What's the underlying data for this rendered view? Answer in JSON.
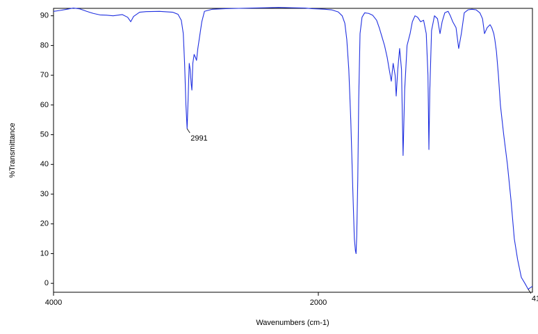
{
  "chart_data": {
    "type": "line",
    "x_label": "Wavenumbers (cm-1)",
    "y_label": "%Transmittance",
    "color": "#1f2fe0",
    "xlim": [
      4000,
      383
    ],
    "ylim": [
      -3,
      92.5
    ],
    "xticks": [
      4000,
      2000
    ],
    "yticks": [
      0,
      10,
      20,
      30,
      40,
      50,
      60,
      70,
      80,
      90
    ],
    "x": [
      4000,
      3950,
      3900,
      3850,
      3800,
      3750,
      3700,
      3650,
      3600,
      3550,
      3480,
      3440,
      3417,
      3395,
      3350,
      3300,
      3200,
      3100,
      3060,
      3035,
      3020,
      3010,
      3000,
      2991,
      2985,
      2975,
      2968,
      2960,
      2955,
      2948,
      2938,
      2928,
      2920,
      2910,
      2900,
      2880,
      2860,
      2800,
      2700,
      2600,
      2500,
      2400,
      2300,
      2200,
      2100,
      2050,
      2000,
      1950,
      1900,
      1850,
      1820,
      1800,
      1785,
      1770,
      1755,
      1740,
      1728,
      1720,
      1715,
      1710,
      1702,
      1695,
      1685,
      1670,
      1650,
      1620,
      1590,
      1560,
      1540,
      1520,
      1500,
      1480,
      1465,
      1449,
      1435,
      1420,
      1412,
      1400,
      1386,
      1372,
      1360,
      1348,
      1330,
      1307,
      1290,
      1270,
      1250,
      1228,
      1205,
      1185,
      1172,
      1165,
      1158,
      1145,
      1123,
      1100,
      1081,
      1065,
      1045,
      1020,
      1003,
      985,
      960,
      940,
      920,
      898,
      870,
      840,
      808,
      780,
      760,
      745,
      725,
      703,
      690,
      675,
      667,
      655,
      640,
      625,
      600,
      572,
      545,
      520,
      495,
      467,
      440,
      415,
      400,
      383
    ],
    "values": [
      91.5,
      91.8,
      92.2,
      92.6,
      92.3,
      91.5,
      90.8,
      90.3,
      90.2,
      90.0,
      90.4,
      89.5,
      88.0,
      89.8,
      91.2,
      91.4,
      91.5,
      91.2,
      90.5,
      88.5,
      84,
      74,
      60,
      52,
      60,
      74,
      72,
      67,
      65,
      74,
      77,
      76,
      75,
      79,
      82,
      88,
      91.5,
      92.2,
      92.4,
      92.5,
      92.6,
      92.7,
      92.8,
      92.7,
      92.6,
      92.4,
      92.3,
      92.2,
      92.0,
      91.3,
      90.0,
      87.5,
      82,
      72,
      55,
      32,
      15,
      11,
      10,
      16,
      35,
      62,
      84,
      89.5,
      91,
      90.8,
      90.2,
      88.5,
      86,
      83,
      80,
      76,
      72,
      68,
      74,
      70,
      63,
      72,
      79,
      72,
      43,
      65,
      80,
      84,
      88,
      90,
      89.5,
      88,
      88.5,
      84,
      70,
      45,
      65,
      85,
      90,
      89,
      84,
      88,
      91,
      91.5,
      90,
      88,
      86,
      79,
      84,
      91,
      92,
      92.2,
      92,
      91,
      89,
      84,
      86,
      87,
      86,
      84,
      82,
      78,
      70,
      60,
      50,
      40,
      28,
      15,
      8,
      2,
      0,
      -2,
      -1.5,
      -1
    ]
  }
}
